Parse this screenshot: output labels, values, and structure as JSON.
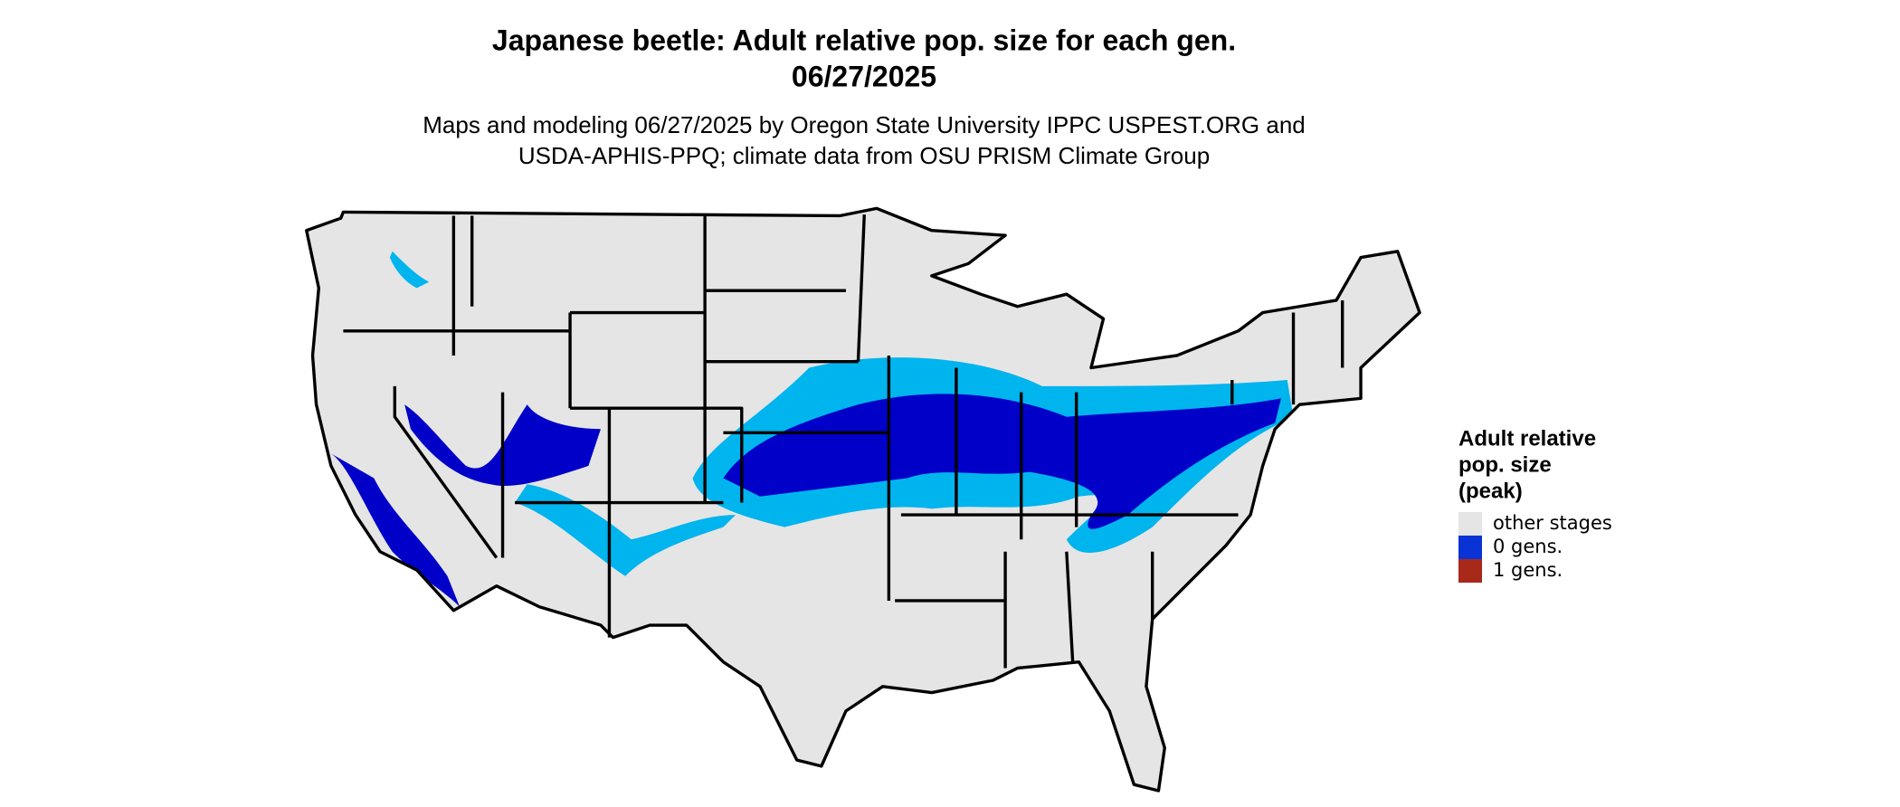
{
  "title_lines": [
    "Japanese beetle: Adult relative pop. size for each gen.",
    "06/27/2025"
  ],
  "subtitle_lines": [
    "Maps and modeling 06/27/2025 by Oregon State University IPPC USPEST.ORG and",
    "USDA-APHIS-PPQ; climate data from OSU PRISM Climate Group"
  ],
  "legend": {
    "title_lines": [
      "Adult relative",
      "pop. size",
      "(peak)"
    ],
    "items": [
      {
        "label": "other stages",
        "color": "#e5e5e5"
      },
      {
        "label": "0 gens.",
        "color": "#0a33d6"
      },
      {
        "label": "1 gens.",
        "color": "#a8281a"
      }
    ]
  }
}
